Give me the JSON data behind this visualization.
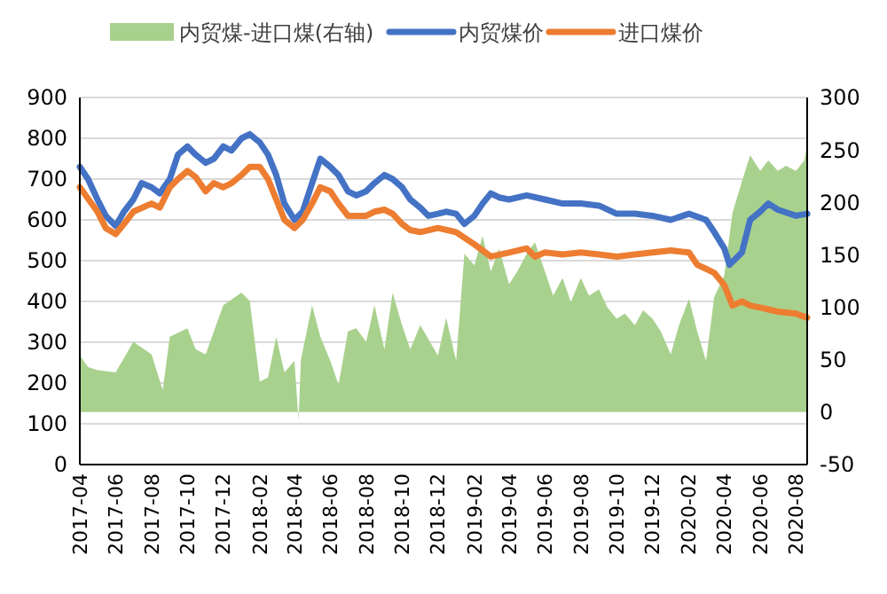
{
  "chart_data": {
    "type": "line",
    "legend": "top",
    "grid": "y",
    "xlim": [
      "2017-04-01",
      "2020-08-20"
    ],
    "xticks": [
      "2017-04",
      "2017-06",
      "2017-08",
      "2017-10",
      "2017-12",
      "2018-02",
      "2018-04",
      "2018-06",
      "2018-08",
      "2018-10",
      "2018-12",
      "2019-02",
      "2019-04",
      "2019-06",
      "2019-08",
      "2019-10",
      "2019-12",
      "2020-02",
      "2020-04",
      "2020-06",
      "2020-08"
    ],
    "ylim": [
      0,
      900
    ],
    "yticks": [
      0,
      100,
      200,
      300,
      400,
      500,
      600,
      700,
      800,
      900
    ],
    "y2lim": [
      -50,
      300
    ],
    "y2ticks": [
      -50,
      0,
      50,
      100,
      150,
      200,
      250,
      300
    ],
    "series": [
      {
        "name": "内贸煤-进口煤(右轴)",
        "type": "area",
        "axis": "y2",
        "color": "#a9d18e",
        "x": [
          "2017-04-01",
          "2017-04-15",
          "2017-05-01",
          "2017-06-01",
          "2017-07-01",
          "2017-08-01",
          "2017-08-20",
          "2017-09-01",
          "2017-10-01",
          "2017-10-15",
          "2017-11-01",
          "2017-11-15",
          "2017-12-01",
          "2018-01-01",
          "2018-01-15",
          "2018-02-01",
          "2018-02-15",
          "2018-03-01",
          "2018-03-15",
          "2018-04-01",
          "2018-04-08",
          "2018-04-12",
          "2018-05-01",
          "2018-05-15",
          "2018-06-01",
          "2018-06-15",
          "2018-07-01",
          "2018-07-15",
          "2018-08-01",
          "2018-08-15",
          "2018-09-01",
          "2018-09-15",
          "2018-10-01",
          "2018-10-15",
          "2018-11-01",
          "2018-12-01",
          "2018-12-15",
          "2019-01-01",
          "2019-01-15",
          "2019-02-01",
          "2019-02-15",
          "2019-03-01",
          "2019-03-15",
          "2019-04-01",
          "2019-04-15",
          "2019-05-01",
          "2019-05-15",
          "2019-06-01",
          "2019-06-15",
          "2019-07-01",
          "2019-07-15",
          "2019-08-01",
          "2019-08-15",
          "2019-09-01",
          "2019-09-15",
          "2019-10-01",
          "2019-10-15",
          "2019-11-01",
          "2019-11-15",
          "2019-12-01",
          "2019-12-15",
          "2020-01-01",
          "2020-01-15",
          "2020-02-01",
          "2020-02-15",
          "2020-03-01",
          "2020-03-15",
          "2020-04-01",
          "2020-04-15",
          "2020-05-01",
          "2020-05-15",
          "2020-06-01",
          "2020-06-15",
          "2020-07-01",
          "2020-07-15",
          "2020-08-01",
          "2020-08-15",
          "2020-08-20"
        ],
        "values": [
          54,
          43,
          40,
          38,
          67,
          55,
          21,
          72,
          80,
          60,
          55,
          77,
          102,
          114,
          106,
          29,
          33,
          72,
          38,
          49,
          -8,
          50,
          102,
          72,
          49,
          26,
          77,
          80,
          67,
          102,
          60,
          114,
          83,
          60,
          83,
          54,
          90,
          49,
          151,
          140,
          168,
          134,
          156,
          122,
          134,
          151,
          162,
          134,
          111,
          128,
          105,
          128,
          111,
          117,
          100,
          89,
          94,
          83,
          97,
          89,
          77,
          55,
          83,
          108,
          77,
          49,
          110,
          130,
          190,
          220,
          245,
          230,
          240,
          230,
          235,
          230,
          240,
          255
        ]
      },
      {
        "name": "内贸煤价",
        "color": "#4472c4",
        "x": [
          "2017-04-01",
          "2017-04-15",
          "2017-05-01",
          "2017-05-15",
          "2017-06-01",
          "2017-06-15",
          "2017-07-01",
          "2017-07-15",
          "2017-08-01",
          "2017-08-15",
          "2017-09-01",
          "2017-09-15",
          "2017-10-01",
          "2017-10-15",
          "2017-11-01",
          "2017-11-15",
          "2017-12-01",
          "2017-12-15",
          "2018-01-01",
          "2018-01-15",
          "2018-02-01",
          "2018-02-15",
          "2018-03-01",
          "2018-03-15",
          "2018-04-01",
          "2018-04-15",
          "2018-05-01",
          "2018-05-15",
          "2018-06-01",
          "2018-06-15",
          "2018-07-01",
          "2018-07-15",
          "2018-08-01",
          "2018-08-15",
          "2018-09-01",
          "2018-09-15",
          "2018-10-01",
          "2018-10-15",
          "2018-11-01",
          "2018-11-15",
          "2018-12-01",
          "2018-12-15",
          "2019-01-01",
          "2019-01-15",
          "2019-02-01",
          "2019-02-15",
          "2019-03-01",
          "2019-03-15",
          "2019-04-01",
          "2019-05-01",
          "2019-06-01",
          "2019-07-01",
          "2019-08-01",
          "2019-09-01",
          "2019-10-01",
          "2019-11-01",
          "2019-12-01",
          "2020-01-01",
          "2020-02-01",
          "2020-03-01",
          "2020-03-15",
          "2020-04-01",
          "2020-04-10",
          "2020-05-01",
          "2020-05-15",
          "2020-06-01",
          "2020-06-15",
          "2020-07-01",
          "2020-08-01",
          "2020-08-20"
        ],
        "values": [
          730,
          700,
          650,
          610,
          585,
          620,
          650,
          690,
          680,
          665,
          700,
          760,
          780,
          760,
          740,
          750,
          780,
          770,
          800,
          810,
          790,
          760,
          710,
          640,
          600,
          620,
          690,
          750,
          730,
          710,
          670,
          660,
          670,
          690,
          710,
          700,
          680,
          650,
          630,
          610,
          615,
          620,
          615,
          590,
          610,
          640,
          665,
          655,
          650,
          660,
          650,
          640,
          640,
          635,
          615,
          615,
          610,
          600,
          615,
          600,
          570,
          530,
          490,
          520,
          600,
          620,
          640,
          625,
          610,
          615
        ]
      },
      {
        "name": "进口煤价",
        "color": "#ed7d31",
        "x": [
          "2017-04-01",
          "2017-05-01",
          "2017-05-15",
          "2017-06-01",
          "2017-06-15",
          "2017-07-01",
          "2017-08-01",
          "2017-08-15",
          "2017-09-01",
          "2017-09-15",
          "2017-10-01",
          "2017-10-15",
          "2017-11-01",
          "2017-11-15",
          "2017-12-01",
          "2017-12-15",
          "2018-01-01",
          "2018-01-15",
          "2018-02-01",
          "2018-02-15",
          "2018-03-01",
          "2018-03-15",
          "2018-04-01",
          "2018-04-15",
          "2018-05-01",
          "2018-05-15",
          "2018-06-01",
          "2018-06-15",
          "2018-07-01",
          "2018-08-01",
          "2018-08-15",
          "2018-09-01",
          "2018-09-15",
          "2018-10-01",
          "2018-10-15",
          "2018-11-01",
          "2018-12-01",
          "2019-01-01",
          "2019-02-01",
          "2019-03-01",
          "2019-04-01",
          "2019-05-01",
          "2019-05-15",
          "2019-06-01",
          "2019-07-01",
          "2019-08-01",
          "2019-09-01",
          "2019-10-01",
          "2019-11-01",
          "2019-12-01",
          "2020-01-01",
          "2020-02-01",
          "2020-02-15",
          "2020-03-01",
          "2020-03-15",
          "2020-04-01",
          "2020-04-15",
          "2020-05-01",
          "2020-05-15",
          "2020-06-01",
          "2020-07-01",
          "2020-08-01",
          "2020-08-20"
        ],
        "values": [
          680,
          620,
          580,
          565,
          590,
          620,
          640,
          630,
          680,
          700,
          720,
          705,
          670,
          690,
          680,
          690,
          710,
          730,
          730,
          700,
          650,
          600,
          580,
          600,
          640,
          680,
          670,
          640,
          610,
          610,
          620,
          625,
          615,
          590,
          575,
          570,
          580,
          570,
          540,
          510,
          520,
          530,
          510,
          520,
          515,
          520,
          515,
          510,
          515,
          520,
          525,
          520,
          490,
          480,
          470,
          440,
          390,
          400,
          390,
          385,
          375,
          370,
          360
        ]
      }
    ]
  }
}
